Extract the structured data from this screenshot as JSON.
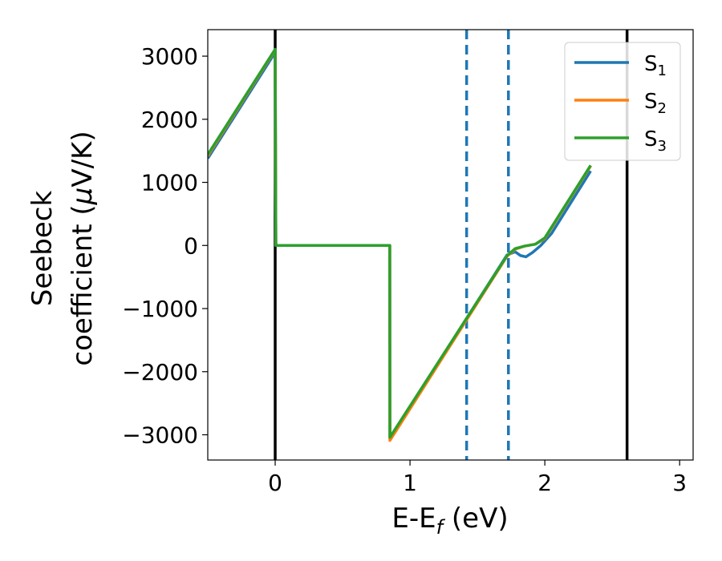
{
  "chart_data": {
    "type": "line",
    "title": "",
    "xlabel": "E-E",
    "xlabel_sub": "f",
    "xlabel_unit": " (eV)",
    "ylabel_line1": "Seebeck",
    "ylabel_line2_pre": "coefficient  (",
    "ylabel_line2_mu": "μ",
    "ylabel_line2_post": "V/K)",
    "xlim": [
      -0.5,
      3.1
    ],
    "ylim": [
      -3400,
      3420
    ],
    "xticks": [
      0,
      1,
      2,
      3
    ],
    "xtick_labels": [
      "0",
      "1",
      "2",
      "3"
    ],
    "yticks": [
      -3000,
      -2000,
      -1000,
      0,
      1000,
      2000,
      3000
    ],
    "ytick_labels": [
      "−3000",
      "−2000",
      "−1000",
      "0",
      "1000",
      "2000",
      "3000"
    ],
    "grid": false,
    "legend_position": "top-right",
    "series": [
      {
        "name": "S",
        "name_sub": "1",
        "color": "#1f77b4",
        "points": [
          [
            -0.5,
            1380
          ],
          [
            0.0,
            3060
          ],
          [
            0.005,
            0
          ],
          [
            0.85,
            0
          ],
          [
            0.851,
            -3060
          ],
          [
            1.72,
            -150
          ],
          [
            1.78,
            -100
          ],
          [
            1.82,
            -160
          ],
          [
            1.86,
            -180
          ],
          [
            1.91,
            -110
          ],
          [
            1.97,
            0
          ],
          [
            2.05,
            190
          ],
          [
            2.34,
            1180
          ]
        ]
      },
      {
        "name": "S",
        "name_sub": "2",
        "color": "#ff7f0e",
        "points": [
          [
            -0.5,
            1420
          ],
          [
            0.0,
            3100
          ],
          [
            0.005,
            0
          ],
          [
            0.85,
            0
          ],
          [
            0.851,
            -3090
          ],
          [
            1.72,
            -170
          ],
          [
            1.78,
            -60
          ],
          [
            1.85,
            -10
          ],
          [
            1.93,
            20
          ],
          [
            2.0,
            110
          ],
          [
            2.34,
            1260
          ]
        ]
      },
      {
        "name": "S",
        "name_sub": "3",
        "color": "#2ca02c",
        "points": [
          [
            -0.5,
            1440
          ],
          [
            0.0,
            3110
          ],
          [
            0.005,
            0
          ],
          [
            0.85,
            0
          ],
          [
            0.851,
            -3040
          ],
          [
            1.72,
            -160
          ],
          [
            1.78,
            -50
          ],
          [
            1.85,
            -10
          ],
          [
            1.93,
            20
          ],
          [
            2.0,
            120
          ],
          [
            2.34,
            1270
          ]
        ]
      }
    ],
    "vertical_lines": [
      {
        "x": 0.0,
        "color": "#000000",
        "style": "solid"
      },
      {
        "x": 2.61,
        "color": "#000000",
        "style": "solid"
      },
      {
        "x": 1.42,
        "color": "#1f77b4",
        "style": "dashed"
      },
      {
        "x": 1.73,
        "color": "#1f77b4",
        "style": "dashed"
      }
    ]
  }
}
